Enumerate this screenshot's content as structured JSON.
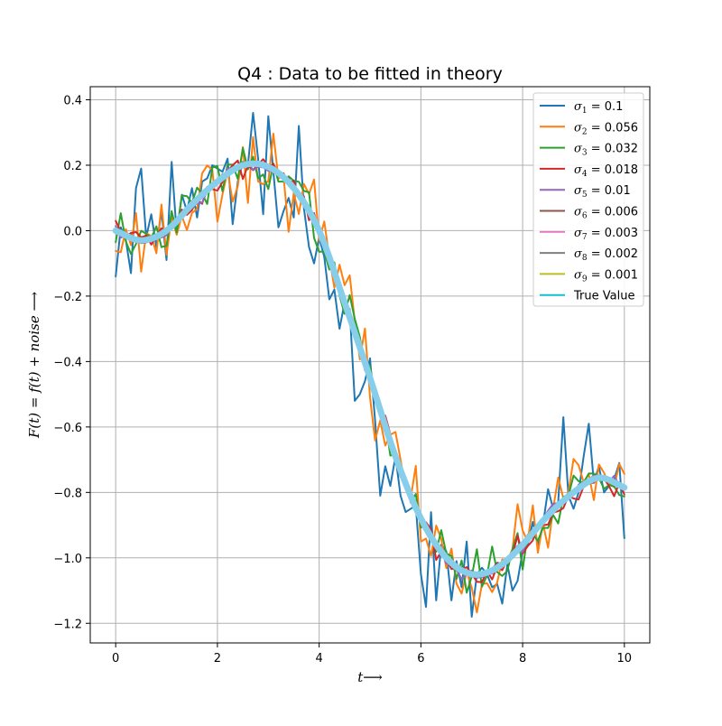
{
  "chart_data": {
    "type": "line",
    "title": "Q4 : Data to be fitted in theory",
    "xlabel": "t⟶",
    "ylabel": "F(t) = f(t) + noise ⟶",
    "xlim": [
      -0.5,
      10.5
    ],
    "ylim": [
      -1.26,
      0.44
    ],
    "xticks": [
      0,
      2,
      4,
      6,
      8,
      10
    ],
    "yticks": [
      0.4,
      0.2,
      0.0,
      -0.2,
      -0.4,
      -0.6,
      -0.8,
      -1.0,
      -1.2
    ],
    "xtick_labels": [
      "0",
      "2",
      "4",
      "6",
      "8",
      "10"
    ],
    "ytick_labels": [
      "0.4",
      "0.2",
      "0.0",
      "−0.2",
      "−0.4",
      "−0.6",
      "−0.8",
      "−1.0",
      "−1.2"
    ],
    "grid": true,
    "legend_position": "upper-right",
    "x": [
      0.0,
      0.1,
      0.2,
      0.3,
      0.4,
      0.5,
      0.6,
      0.7,
      0.8,
      0.9,
      1.0,
      1.1,
      1.2,
      1.3,
      1.4,
      1.5,
      1.6,
      1.7,
      1.8,
      1.9,
      2.0,
      2.1,
      2.2,
      2.3,
      2.4,
      2.5,
      2.6,
      2.7,
      2.8,
      2.9,
      3.0,
      3.1,
      3.2,
      3.3,
      3.4,
      3.5,
      3.6,
      3.7,
      3.8,
      3.9,
      4.0,
      4.1,
      4.2,
      4.3,
      4.4,
      4.5,
      4.6,
      4.7,
      4.8,
      4.9,
      5.0,
      5.1,
      5.2,
      5.3,
      5.4,
      5.5,
      5.6,
      5.7,
      5.8,
      5.9,
      6.0,
      6.1,
      6.2,
      6.3,
      6.4,
      6.5,
      6.6,
      6.7,
      6.8,
      6.9,
      7.0,
      7.1,
      7.2,
      7.3,
      7.4,
      7.5,
      7.6,
      7.7,
      7.8,
      7.9,
      8.0,
      8.1,
      8.2,
      8.3,
      8.4,
      8.5,
      8.6,
      8.7,
      8.8,
      8.9,
      9.0,
      9.1,
      9.2,
      9.3,
      9.4,
      9.5,
      9.6,
      9.7,
      9.8,
      9.9,
      10.0
    ],
    "series": [
      {
        "name": "σ1 = 0.1",
        "sym": "σ",
        "sub": "1",
        "value": "0.1",
        "color": "#1f77b4",
        "sigma": 0.1,
        "seed": 11,
        "width": 2,
        "values": [
          -0.14,
          0.01,
          -0.03,
          -0.13,
          0.13,
          0.19,
          -0.02,
          0.05,
          -0.05,
          0.06,
          -0.09,
          0.21,
          -0.01,
          0.11,
          0.06,
          0.13,
          0.04,
          0.15,
          0.16,
          0.2,
          0.19,
          0.18,
          0.22,
          0.02,
          0.15,
          0.21,
          0.2,
          0.36,
          0.22,
          0.05,
          0.35,
          0.18,
          0.01,
          0.06,
          0.1,
          0.04,
          0.32,
          0.07,
          -0.05,
          -0.1,
          -0.02,
          -0.08,
          -0.21,
          -0.18,
          -0.3,
          -0.22,
          -0.24,
          -0.52,
          -0.5,
          -0.46,
          -0.39,
          -0.58,
          -0.81,
          -0.72,
          -0.78,
          -0.69,
          -0.81,
          -0.86,
          -0.85,
          -0.84,
          -1.05,
          -1.15,
          -0.86,
          -1.13,
          -0.96,
          -0.98,
          -1.13,
          -1.01,
          -1.09,
          -0.95,
          -1.18,
          -1.05,
          -1.03,
          -1.05,
          -1.09,
          -1.08,
          -1.14,
          -1.02,
          -1.1,
          -1.07,
          -0.98,
          -0.96,
          -0.89,
          -0.96,
          -0.9,
          -0.79,
          -0.85,
          -0.83,
          -0.57,
          -0.81,
          -0.85,
          -0.8,
          -0.69,
          -0.59,
          -0.77,
          -0.72,
          -0.8,
          -0.78,
          -0.76,
          -0.71,
          -0.94
        ]
      },
      {
        "name": "σ2 = 0.056",
        "sym": "σ",
        "sub": "2",
        "value": "0.056",
        "color": "#ff7f0e",
        "sigma": 0.056,
        "seed": 23,
        "width": 2
      },
      {
        "name": "σ3 = 0.032",
        "sym": "σ",
        "sub": "3",
        "value": "0.032",
        "color": "#2ca02c",
        "sigma": 0.032,
        "seed": 37,
        "width": 2
      },
      {
        "name": "σ4 = 0.018",
        "sym": "σ",
        "sub": "4",
        "value": "0.018",
        "color": "#d62728",
        "sigma": 0.018,
        "seed": 41,
        "width": 2
      },
      {
        "name": "σ5 = 0.01",
        "sym": "σ",
        "sub": "5",
        "value": "0.01",
        "color": "#9467bd",
        "sigma": 0.01,
        "seed": 53,
        "width": 2
      },
      {
        "name": "σ6 = 0.006",
        "sym": "σ",
        "sub": "6",
        "value": "0.006",
        "color": "#8c564b",
        "sigma": 0.006,
        "seed": 67,
        "width": 2
      },
      {
        "name": "σ7 = 0.003",
        "sym": "σ",
        "sub": "7",
        "value": "0.003",
        "color": "#e377c2",
        "sigma": 0.003,
        "seed": 71,
        "width": 2
      },
      {
        "name": "σ8 = 0.002",
        "sym": "σ",
        "sub": "8",
        "value": "0.002",
        "color": "#7f7f7f",
        "sigma": 0.002,
        "seed": 83,
        "width": 2
      },
      {
        "name": "σ9 = 0.001",
        "sym": "σ",
        "sub": "9",
        "value": "0.001",
        "color": "#bcbd22",
        "sigma": 0.001,
        "seed": 97,
        "width": 2
      },
      {
        "name": "True Value",
        "sym": "",
        "sub": "",
        "value": "",
        "color": "#87ceeb",
        "legend_color": "#17becf",
        "sigma": 0,
        "seed": 0,
        "width": 7
      }
    ]
  }
}
